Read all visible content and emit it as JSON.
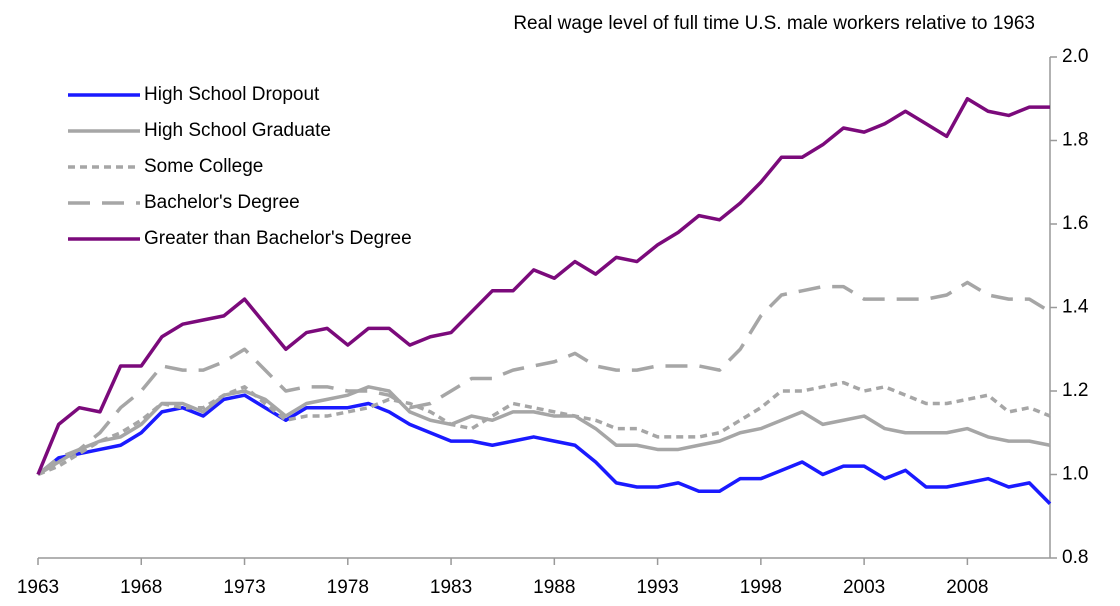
{
  "chart_data": {
    "type": "line",
    "title": "Real wage level of full time U.S. male workers relative to 1963",
    "x": [
      1963,
      1964,
      1965,
      1966,
      1967,
      1968,
      1969,
      1970,
      1971,
      1972,
      1973,
      1974,
      1975,
      1976,
      1977,
      1978,
      1979,
      1980,
      1981,
      1982,
      1983,
      1984,
      1985,
      1986,
      1987,
      1988,
      1989,
      1990,
      1991,
      1992,
      1993,
      1994,
      1995,
      1996,
      1997,
      1998,
      1999,
      2000,
      2001,
      2002,
      2003,
      2004,
      2005,
      2006,
      2007,
      2008,
      2009,
      2010,
      2011,
      2012
    ],
    "xlim": [
      1963,
      2012
    ],
    "xticks": [
      1963,
      1968,
      1973,
      1978,
      1983,
      1988,
      1993,
      1998,
      2003,
      2008
    ],
    "ylim": [
      0.8,
      2.0
    ],
    "yticks": [
      {
        "value": 0.8,
        "label": "0.8"
      },
      {
        "value": 1,
        "label": "1.0"
      },
      {
        "value": 1.2,
        "label": "1.2"
      },
      {
        "value": 1.4,
        "label": "1.4"
      },
      {
        "value": 1.6,
        "label": "1.6"
      },
      {
        "value": 1.8,
        "label": "1.8"
      },
      {
        "value": 2,
        "label": "2.0"
      }
    ],
    "legend": "upper left",
    "series": [
      {
        "name": "High School Dropout",
        "color": "#1a1aff",
        "dash": "solid",
        "values": [
          1.0,
          1.04,
          1.05,
          1.06,
          1.07,
          1.1,
          1.15,
          1.16,
          1.14,
          1.18,
          1.19,
          1.16,
          1.13,
          1.16,
          1.16,
          1.16,
          1.17,
          1.15,
          1.12,
          1.1,
          1.08,
          1.08,
          1.07,
          1.08,
          1.09,
          1.08,
          1.07,
          1.03,
          0.98,
          0.97,
          0.97,
          0.98,
          0.96,
          0.96,
          0.99,
          0.99,
          1.01,
          1.03,
          1.0,
          1.02,
          1.02,
          0.99,
          1.01,
          0.97,
          0.97,
          0.98,
          0.99,
          0.97,
          0.98,
          0.93
        ]
      },
      {
        "name": "High School Graduate",
        "color": "#a6a6a6",
        "dash": "solid",
        "values": [
          1.0,
          1.03,
          1.06,
          1.08,
          1.09,
          1.12,
          1.17,
          1.17,
          1.15,
          1.19,
          1.2,
          1.18,
          1.14,
          1.17,
          1.18,
          1.19,
          1.21,
          1.2,
          1.15,
          1.13,
          1.12,
          1.14,
          1.13,
          1.15,
          1.15,
          1.14,
          1.14,
          1.11,
          1.07,
          1.07,
          1.06,
          1.06,
          1.07,
          1.08,
          1.1,
          1.11,
          1.13,
          1.15,
          1.12,
          1.13,
          1.14,
          1.11,
          1.1,
          1.1,
          1.1,
          1.11,
          1.09,
          1.08,
          1.08,
          1.07
        ]
      },
      {
        "name": "Some College",
        "color": "#a6a6a6",
        "dash": "dotted",
        "values": [
          1.0,
          1.02,
          1.05,
          1.08,
          1.1,
          1.13,
          1.17,
          1.16,
          1.16,
          1.19,
          1.21,
          1.17,
          1.13,
          1.14,
          1.14,
          1.15,
          1.16,
          1.18,
          1.17,
          1.15,
          1.12,
          1.11,
          1.14,
          1.17,
          1.16,
          1.15,
          1.14,
          1.13,
          1.11,
          1.11,
          1.09,
          1.09,
          1.09,
          1.1,
          1.13,
          1.16,
          1.2,
          1.2,
          1.21,
          1.22,
          1.2,
          1.21,
          1.19,
          1.17,
          1.17,
          1.18,
          1.19,
          1.15,
          1.16,
          1.14
        ]
      },
      {
        "name": "Bachelor's Degree",
        "color": "#a6a6a6",
        "dash": "dashed",
        "values": [
          1.0,
          1.04,
          1.06,
          1.1,
          1.16,
          1.2,
          1.26,
          1.25,
          1.25,
          1.27,
          1.3,
          1.25,
          1.2,
          1.21,
          1.21,
          1.2,
          1.2,
          1.19,
          1.16,
          1.17,
          1.2,
          1.23,
          1.23,
          1.25,
          1.26,
          1.27,
          1.29,
          1.26,
          1.25,
          1.25,
          1.26,
          1.26,
          1.26,
          1.25,
          1.3,
          1.38,
          1.43,
          1.44,
          1.45,
          1.45,
          1.42,
          1.42,
          1.42,
          1.42,
          1.43,
          1.46,
          1.43,
          1.42,
          1.42,
          1.39
        ]
      },
      {
        "name": "Greater than Bachelor's Degree",
        "color": "#7b0a7b",
        "dash": "solid",
        "values": [
          1.0,
          1.12,
          1.16,
          1.15,
          1.26,
          1.26,
          1.33,
          1.36,
          1.37,
          1.38,
          1.42,
          1.36,
          1.3,
          1.34,
          1.35,
          1.31,
          1.35,
          1.35,
          1.31,
          1.33,
          1.34,
          1.39,
          1.44,
          1.44,
          1.49,
          1.47,
          1.51,
          1.48,
          1.52,
          1.51,
          1.55,
          1.58,
          1.62,
          1.61,
          1.65,
          1.7,
          1.76,
          1.76,
          1.79,
          1.83,
          1.82,
          1.84,
          1.87,
          1.84,
          1.81,
          1.9,
          1.87,
          1.86,
          1.88,
          1.88
        ]
      }
    ]
  }
}
